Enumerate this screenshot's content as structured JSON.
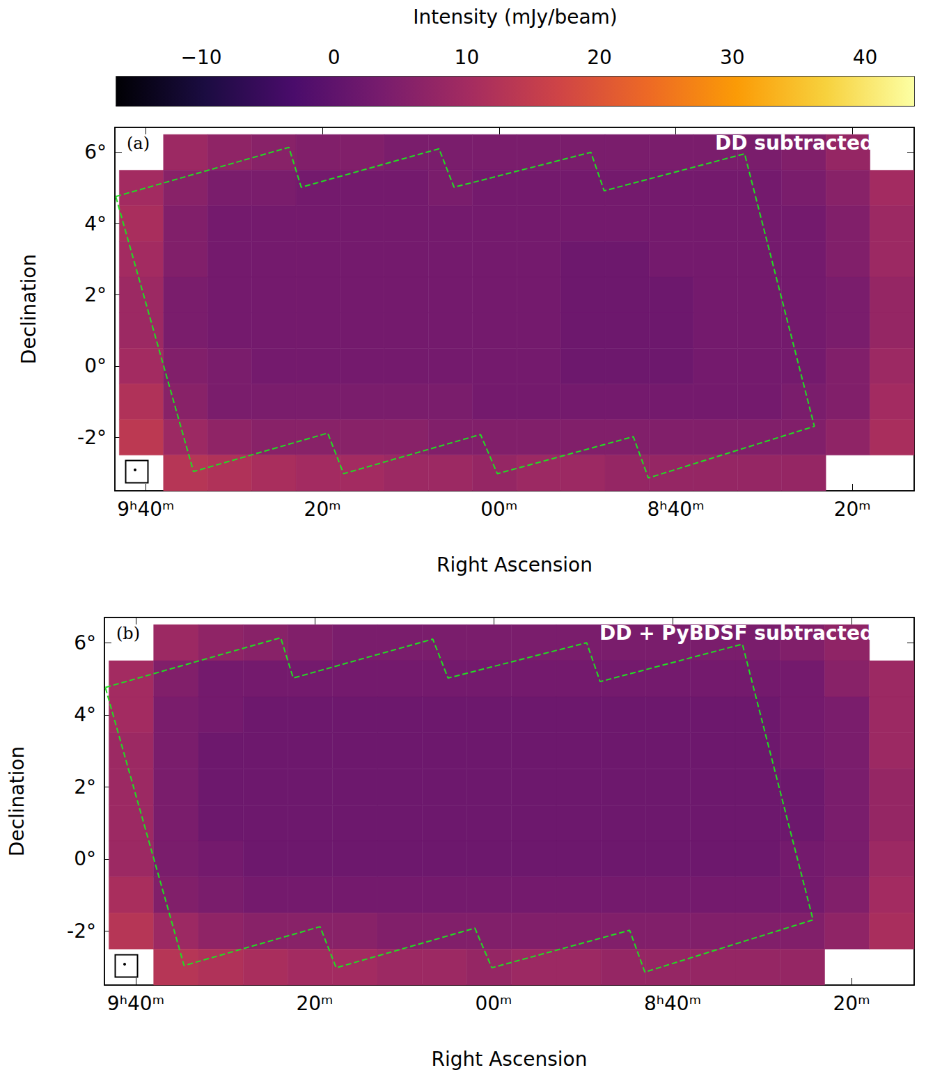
{
  "colorbar": {
    "label": "Intensity (mJy/beam)",
    "range": [
      -16.4,
      43.7
    ],
    "ticks": [
      {
        "value": -10,
        "label": "−10"
      },
      0,
      10,
      20,
      30,
      40
    ]
  },
  "chart_data": [
    {
      "type": "heatmap",
      "title": "DD subtracted",
      "label": "(a)",
      "x_label": "Right Ascension",
      "y_label": "Declination",
      "xlim": [
        583.5,
        493
      ],
      "ylim": [
        -3.5,
        6.7
      ],
      "xticks": [
        {
          "value": 580,
          "label": "9ʰ40ᵐ"
        },
        {
          "value": 560,
          "label": "20ᵐ"
        },
        {
          "value": 540,
          "label": "00ᵐ"
        },
        {
          "value": 520,
          "label": "8ʰ40ᵐ"
        },
        {
          "value": 500,
          "label": "20ᵐ"
        }
      ],
      "yticks": [
        {
          "value": -2,
          "label": "-2°"
        },
        {
          "value": 0,
          "label": "0°"
        },
        {
          "value": 2,
          "label": "2°"
        },
        {
          "value": 4,
          "label": "4°"
        },
        {
          "value": 6,
          "label": "6°"
        }
      ],
      "x": [
        580.5,
        575.5,
        570.5,
        565.5,
        560.5,
        555.5,
        550.5,
        545.5,
        540.5,
        535.5,
        530.5,
        525.5,
        520.5,
        515.5,
        510.5,
        505.5,
        500.5,
        495.5
      ],
      "y": [
        6,
        5,
        4,
        3,
        2,
        1,
        0,
        -1,
        -2,
        -3
      ],
      "values": [
        [
          null,
          9,
          7,
          6,
          5,
          5,
          4,
          4,
          4,
          4,
          4,
          4,
          4,
          4,
          4,
          5,
          8,
          null
        ],
        [
          10,
          6,
          4,
          4,
          3,
          3,
          3,
          4,
          3,
          3,
          3,
          3,
          3,
          3,
          3,
          4,
          6,
          10
        ],
        [
          11,
          5,
          3,
          3,
          3,
          3,
          3,
          3,
          3,
          3,
          3,
          3,
          3,
          3,
          3,
          3,
          5,
          9
        ],
        [
          10,
          5,
          3,
          3,
          3,
          3,
          3,
          3,
          3,
          3,
          2,
          2,
          3,
          3,
          3,
          3,
          5,
          9
        ],
        [
          9,
          4,
          3,
          3,
          3,
          3,
          3,
          3,
          3,
          3,
          2,
          2,
          2,
          3,
          3,
          3,
          4,
          8
        ],
        [
          9,
          4,
          3,
          3,
          3,
          3,
          3,
          3,
          3,
          3,
          2,
          2,
          2,
          3,
          3,
          3,
          4,
          8
        ],
        [
          10,
          5,
          4,
          3,
          3,
          3,
          3,
          3,
          3,
          3,
          2,
          2,
          2,
          3,
          3,
          3,
          5,
          9
        ],
        [
          12,
          6,
          4,
          4,
          4,
          4,
          4,
          4,
          3,
          3,
          3,
          3,
          3,
          3,
          3,
          4,
          5,
          10
        ],
        [
          14,
          9,
          7,
          6,
          6,
          6,
          6,
          5,
          5,
          5,
          5,
          5,
          5,
          5,
          5,
          5,
          7,
          11
        ],
        [
          null,
          13,
          12,
          11,
          10,
          10,
          9,
          9,
          8,
          9,
          9,
          8,
          8,
          8,
          8,
          8,
          null,
          null
        ]
      ],
      "footprint": {
        "color": "#22dd22",
        "line_style": "dashed",
        "ra": [
          583.4,
          563.8,
          562.4,
          546.8,
          545.1,
          529.6,
          528.1,
          512.2,
          504.3,
          523.1,
          524.8,
          540.2,
          542.1,
          557.6,
          559.4,
          574.6
        ],
        "dec": [
          4.76,
          6.14,
          5.02,
          6.1,
          5.02,
          6.0,
          4.92,
          5.96,
          -1.69,
          -3.14,
          -1.98,
          -3.02,
          -1.92,
          -3.02,
          -1.88,
          -2.96
        ]
      }
    },
    {
      "type": "heatmap",
      "title": "DD + PyBDSF subtracted",
      "label": "(b)",
      "x_label": "Right Ascension",
      "y_label": "Declination",
      "xlim": [
        583.5,
        493
      ],
      "ylim": [
        -3.5,
        6.7
      ],
      "xticks": [
        {
          "value": 580,
          "label": "9ʰ40ᵐ"
        },
        {
          "value": 560,
          "label": "20ᵐ"
        },
        {
          "value": 540,
          "label": "00ᵐ"
        },
        {
          "value": 520,
          "label": "8ʰ40ᵐ"
        },
        {
          "value": 500,
          "label": "20ᵐ"
        }
      ],
      "yticks": [
        {
          "value": -2,
          "label": "-2°"
        },
        {
          "value": 0,
          "label": "0°"
        },
        {
          "value": 2,
          "label": "2°"
        },
        {
          "value": 4,
          "label": "4°"
        },
        {
          "value": 6,
          "label": "6°"
        }
      ],
      "x": [
        580.5,
        575.5,
        570.5,
        565.5,
        560.5,
        555.5,
        550.5,
        545.5,
        540.5,
        535.5,
        530.5,
        525.5,
        520.5,
        515.5,
        510.5,
        505.5,
        500.5,
        495.5
      ],
      "y": [
        6,
        5,
        4,
        3,
        2,
        1,
        0,
        -1,
        -2,
        -3
      ],
      "values": [
        [
          null,
          9,
          7,
          6,
          5,
          4,
          4,
          4,
          4,
          4,
          4,
          4,
          4,
          4,
          4,
          5,
          7,
          null
        ],
        [
          10,
          5,
          3,
          3,
          3,
          3,
          3,
          3,
          3,
          3,
          3,
          3,
          3,
          3,
          3,
          3,
          6,
          9
        ],
        [
          10,
          4,
          3,
          2,
          2,
          2,
          2,
          2,
          2,
          2,
          2,
          2,
          2,
          2,
          2,
          3,
          4,
          9
        ],
        [
          9,
          4,
          2,
          2,
          2,
          2,
          2,
          2,
          2,
          2,
          2,
          2,
          2,
          2,
          2,
          3,
          4,
          9
        ],
        [
          9,
          4,
          2,
          2,
          2,
          2,
          2,
          2,
          2,
          2,
          2,
          2,
          2,
          2,
          2,
          2,
          4,
          8
        ],
        [
          9,
          4,
          2,
          2,
          2,
          2,
          2,
          2,
          2,
          2,
          2,
          2,
          2,
          2,
          2,
          2,
          4,
          8
        ],
        [
          9,
          4,
          3,
          2,
          2,
          2,
          2,
          2,
          2,
          2,
          2,
          2,
          2,
          2,
          2,
          3,
          4,
          9
        ],
        [
          11,
          5,
          4,
          3,
          3,
          3,
          3,
          3,
          3,
          3,
          3,
          3,
          3,
          3,
          3,
          3,
          5,
          10
        ],
        [
          13,
          9,
          7,
          6,
          6,
          6,
          5,
          5,
          5,
          5,
          5,
          5,
          5,
          5,
          5,
          5,
          7,
          11
        ],
        [
          null,
          13,
          12,
          11,
          10,
          10,
          9,
          9,
          8,
          9,
          9,
          8,
          8,
          8,
          8,
          8,
          null,
          null
        ]
      ],
      "footprint": {
        "color": "#22dd22",
        "line_style": "dashed",
        "ra": [
          583.4,
          563.8,
          562.4,
          546.8,
          545.1,
          529.6,
          528.1,
          512.2,
          504.3,
          523.1,
          524.8,
          540.2,
          542.1,
          557.6,
          559.4,
          574.6
        ],
        "dec": [
          4.76,
          6.14,
          5.02,
          6.1,
          5.02,
          6.0,
          4.92,
          5.96,
          -1.69,
          -3.14,
          -1.98,
          -3.02,
          -1.92,
          -3.02,
          -1.88,
          -2.96
        ]
      }
    }
  ]
}
